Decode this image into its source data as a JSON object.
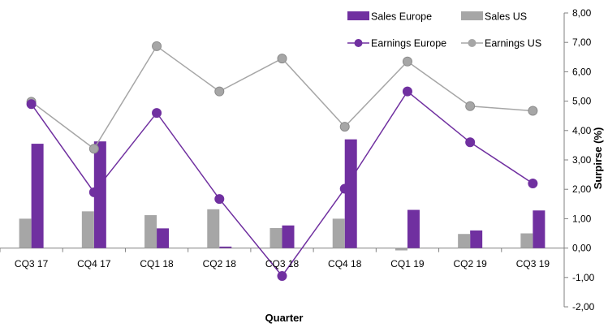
{
  "chart_data": {
    "type": "bar",
    "categories": [
      "CQ3 17",
      "CQ4 17",
      "CQ1 18",
      "CQ2 18",
      "CQ3 18",
      "CQ4 18",
      "CQ1 19",
      "CQ2 19",
      "CQ3 19"
    ],
    "series": [
      {
        "name": "Sales Europe",
        "kind": "bar",
        "color": "#7030a0",
        "values": [
          3.55,
          3.63,
          0.67,
          0.05,
          0.77,
          3.7,
          1.3,
          0.6,
          1.28
        ]
      },
      {
        "name": "Sales US",
        "kind": "bar",
        "color": "#a6a6a6",
        "values": [
          1.0,
          1.25,
          1.12,
          1.32,
          0.68,
          1.0,
          -0.08,
          0.48,
          0.5
        ]
      },
      {
        "name": "Earnings Europe",
        "kind": "line",
        "color": "#7030a0",
        "values": [
          4.9,
          1.9,
          4.6,
          1.67,
          -0.95,
          2.02,
          5.33,
          3.6,
          2.2
        ]
      },
      {
        "name": "Earnings US",
        "kind": "line",
        "color": "#a6a6a6",
        "values": [
          4.98,
          3.38,
          6.87,
          5.33,
          6.45,
          4.13,
          6.35,
          4.83,
          4.67
        ]
      }
    ],
    "xlabel": "Quarter",
    "ylabel": "Surpirse (%)",
    "ylim": [
      -2,
      8
    ],
    "yticks": [
      "-2,00",
      "-1,00",
      "0,00",
      "1,00",
      "2,00",
      "3,00",
      "4,00",
      "5,00",
      "6,00",
      "7,00",
      "8,00"
    ],
    "y_axis_side": "right",
    "grid": false,
    "legend_position": "top-right"
  }
}
